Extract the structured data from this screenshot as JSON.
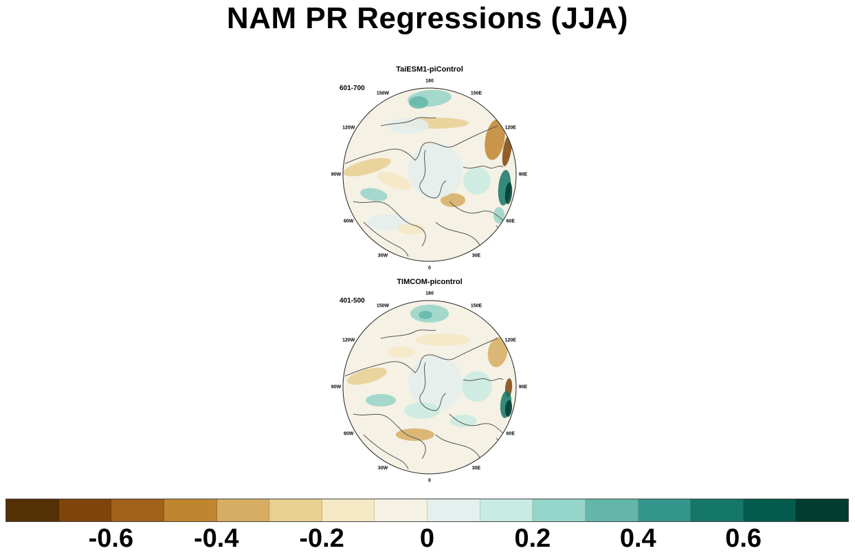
{
  "title": "NAM PR Regressions (JJA)",
  "panels": [
    {
      "title": "TaiESM1-piControl",
      "period": "601-700"
    },
    {
      "title": "TIMCOM-picontrol",
      "period": "401-500"
    }
  ],
  "longitude_labels": [
    "180",
    "150E",
    "120E",
    "90E",
    "60E",
    "30E",
    "0",
    "30W",
    "60W",
    "90W",
    "120W",
    "150W"
  ],
  "colorbar": {
    "colors": [
      "#543005",
      "#7f440a",
      "#a0621b",
      "#c0852f",
      "#d6ad63",
      "#e8cf92",
      "#f5e8c5",
      "#f5f1e5",
      "#e4efee",
      "#c8ebe3",
      "#95d4c8",
      "#63b6a9",
      "#34968c",
      "#147769",
      "#025b4c",
      "#003c30"
    ],
    "tick_labels": [
      "-0.6",
      "-0.4",
      "-0.2",
      "0",
      "0.2",
      "0.4",
      "0.6"
    ],
    "tick_values": [
      -0.6,
      -0.4,
      -0.2,
      0,
      0.2,
      0.4,
      0.6
    ],
    "min": -0.8,
    "max": 0.8
  }
}
